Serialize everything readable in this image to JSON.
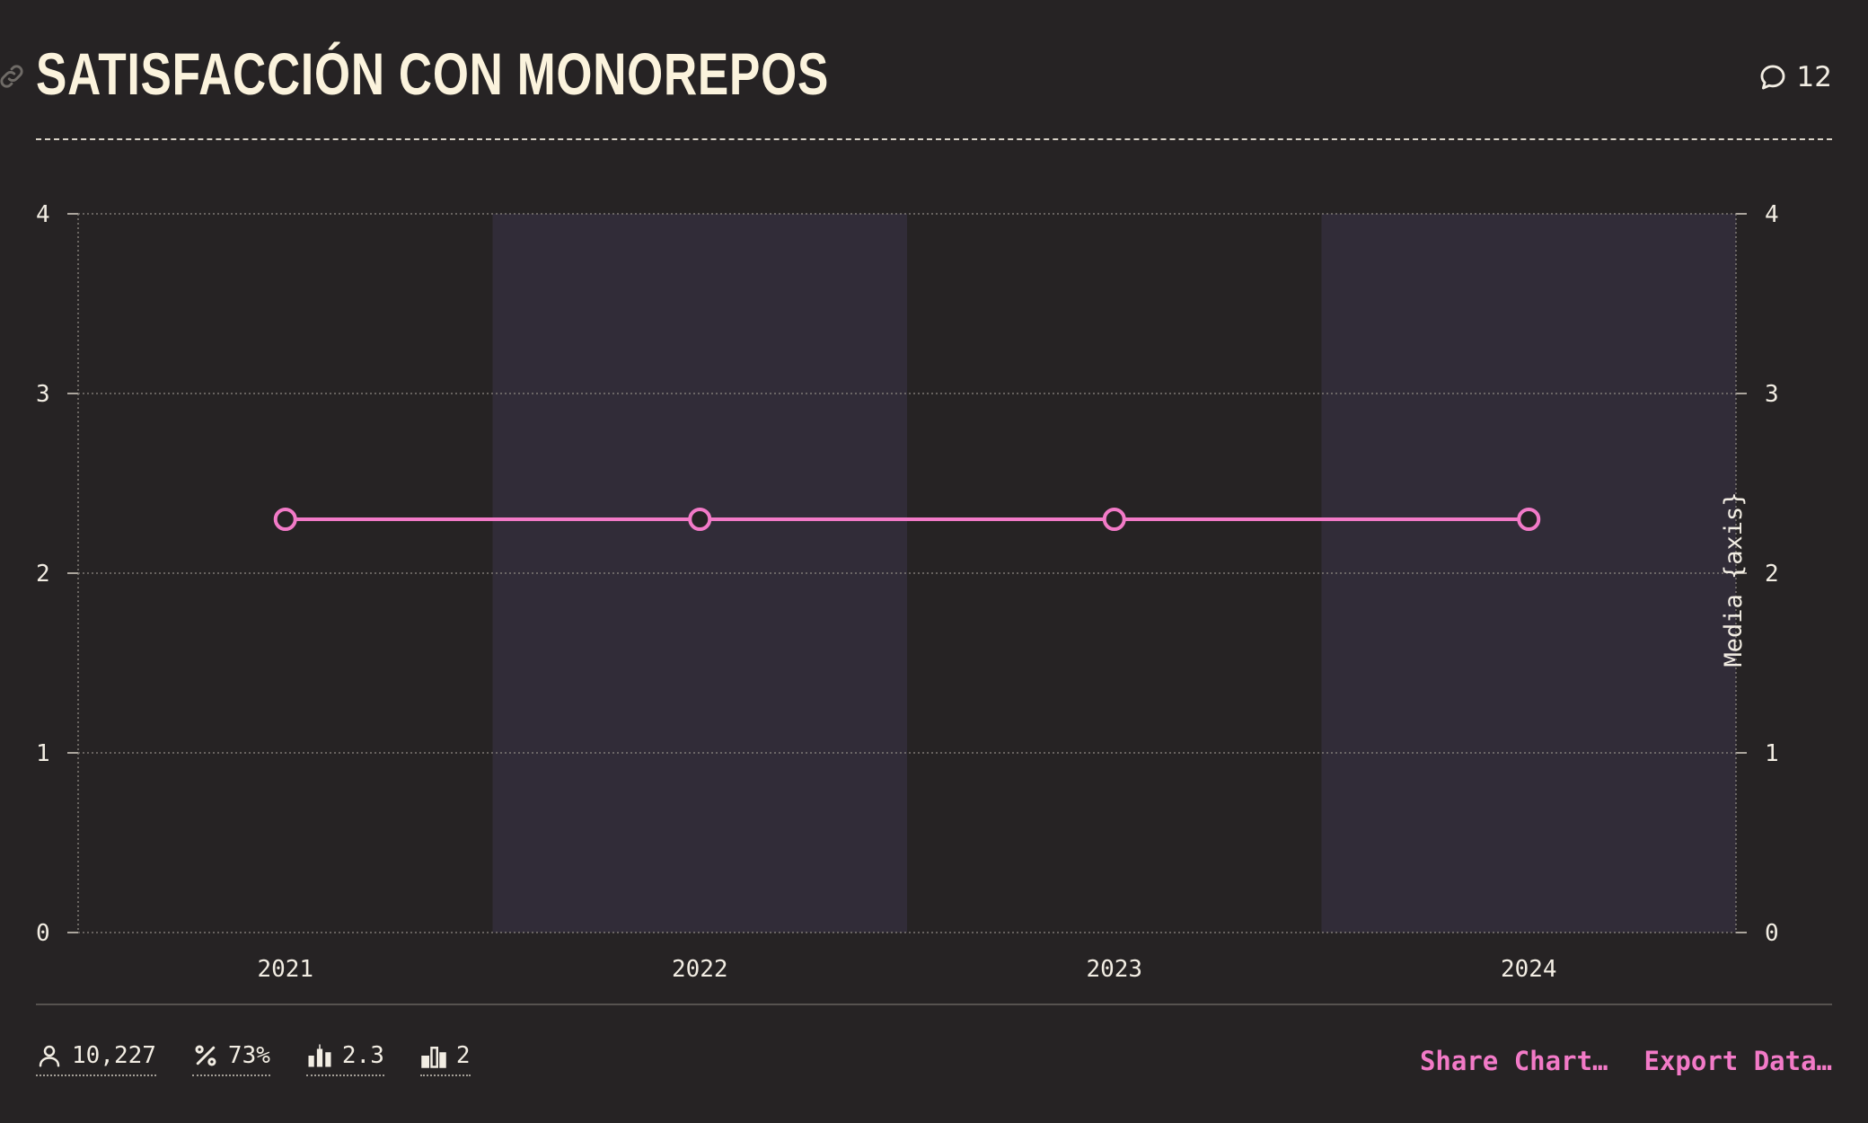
{
  "header": {
    "title": "SATISFACCIÓN CON MONOREPOS",
    "comments_count": "12"
  },
  "chart_data": {
    "type": "line",
    "categories": [
      "2021",
      "2022",
      "2023",
      "2024"
    ],
    "series": [
      {
        "values": [
          2.3,
          2.3,
          2.3,
          2.3
        ],
        "color": "#f27ac7"
      }
    ],
    "ylim": [
      0,
      4
    ],
    "yticks": [
      "0",
      "1",
      "2",
      "3",
      "4"
    ],
    "y2ticks": [
      "0",
      "1",
      "2",
      "3",
      "4"
    ],
    "y2label": "Media {axis}",
    "grid": true,
    "band_colors": [
      "#262324",
      "#312c38"
    ]
  },
  "footer": {
    "stats": [
      {
        "icon": "user-icon",
        "value": "10,227"
      },
      {
        "icon": "percent-icon",
        "value": "73%"
      },
      {
        "icon": "candlestick-icon",
        "value": "2.3"
      },
      {
        "icon": "bar-chart-icon",
        "value": "2"
      }
    ],
    "share_label": "Share Chart…",
    "export_label": "Export Data…"
  },
  "colors": {
    "background": "#262324",
    "accent": "#f27ac7",
    "title": "#fbf3dd"
  }
}
